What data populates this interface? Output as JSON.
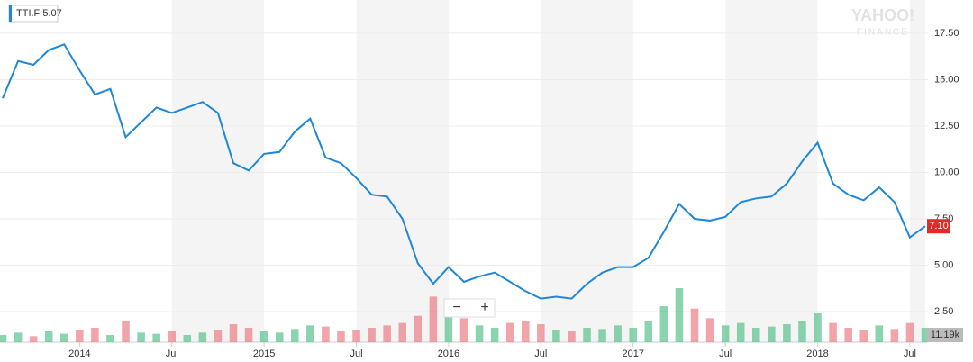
{
  "chart_data": {
    "type": "line",
    "symbol": "TTI.F",
    "legend_value": "5.07",
    "watermark": [
      "YAHOO!",
      "FINANCE"
    ],
    "zoom_controls": [
      "−",
      "+"
    ],
    "x": [
      "2013-08",
      "2013-09",
      "2013-10",
      "2013-11",
      "2013-12",
      "2014-01",
      "2014-02",
      "2014-03",
      "2014-04",
      "2014-05",
      "2014-06",
      "2014-07",
      "2014-08",
      "2014-09",
      "2014-10",
      "2014-11",
      "2014-12",
      "2015-01",
      "2015-02",
      "2015-03",
      "2015-04",
      "2015-05",
      "2015-06",
      "2015-07",
      "2015-08",
      "2015-09",
      "2015-10",
      "2015-11",
      "2015-12",
      "2016-01",
      "2016-02",
      "2016-03",
      "2016-04",
      "2016-05",
      "2016-06",
      "2016-07",
      "2016-08",
      "2016-09",
      "2016-10",
      "2016-11",
      "2016-12",
      "2017-01",
      "2017-02",
      "2017-03",
      "2017-04",
      "2017-05",
      "2017-06",
      "2017-07",
      "2017-08",
      "2017-09",
      "2017-10",
      "2017-11",
      "2017-12",
      "2018-01",
      "2018-02",
      "2018-03",
      "2018-04",
      "2018-05",
      "2018-06",
      "2018-07",
      "2018-08"
    ],
    "series": [
      {
        "name": "TTI.F",
        "color": "#1f87d6",
        "values": [
          14.0,
          16.0,
          15.8,
          16.6,
          16.9,
          15.5,
          14.2,
          14.5,
          11.9,
          12.7,
          13.5,
          13.2,
          13.5,
          13.8,
          13.2,
          10.5,
          10.1,
          11.0,
          11.1,
          12.2,
          12.9,
          10.8,
          10.5,
          9.7,
          8.8,
          8.7,
          7.5,
          5.1,
          4.0,
          4.9,
          4.1,
          4.4,
          4.6,
          4.1,
          3.6,
          3.2,
          3.3,
          3.2,
          4.0,
          4.6,
          4.9,
          4.9,
          5.4,
          6.8,
          8.3,
          7.5,
          7.4,
          7.6,
          8.4,
          8.6,
          8.7,
          9.4,
          10.6,
          11.6,
          9.4,
          8.8,
          8.5,
          9.2,
          8.4,
          6.5,
          7.1
        ]
      },
      {
        "name": "Volume",
        "axis": "y2",
        "up_color": "#3cb878",
        "down_color": "#e8686f",
        "values": [
          6,
          8,
          5,
          9,
          7,
          10,
          12,
          6,
          18,
          8,
          7,
          9,
          6,
          8,
          10,
          15,
          12,
          9,
          8,
          11,
          14,
          13,
          9,
          10,
          12,
          14,
          16,
          22,
          38,
          30,
          20,
          14,
          12,
          16,
          18,
          15,
          10,
          9,
          12,
          11,
          14,
          12,
          18,
          30,
          45,
          28,
          20,
          14,
          16,
          12,
          13,
          15,
          18,
          24,
          16,
          12,
          10,
          14,
          11,
          16,
          12
        ]
      }
    ],
    "xlim": [
      "2013-08",
      "2018-08"
    ],
    "xticks": [
      {
        "value": "2014-01",
        "label": "2014"
      },
      {
        "value": "2014-07",
        "label": "Jul"
      },
      {
        "value": "2015-01",
        "label": "2015"
      },
      {
        "value": "2015-07",
        "label": "Jul"
      },
      {
        "value": "2016-01",
        "label": "2016"
      },
      {
        "value": "2016-07",
        "label": "Jul"
      },
      {
        "value": "2017-01",
        "label": "2017"
      },
      {
        "value": "2017-07",
        "label": "Jul"
      },
      {
        "value": "2018-01",
        "label": "2018"
      },
      {
        "value": "2018-07",
        "label": "Jul"
      }
    ],
    "ylim": [
      0.85,
      19.05
    ],
    "yticks": [
      {
        "value": 2.5,
        "label": "2.50"
      },
      {
        "value": 5,
        "label": "5.00"
      },
      {
        "value": 7.5,
        "label": "7.50"
      },
      {
        "value": 10,
        "label": "10.00"
      },
      {
        "value": 12.5,
        "label": "12.50"
      },
      {
        "value": 15,
        "label": "15.00"
      },
      {
        "value": 17.5,
        "label": "17.50"
      }
    ],
    "y2lim": [
      0,
      60
    ],
    "last_label": {
      "value": 7.1,
      "label": "7.10"
    },
    "volume_label": "11.19k",
    "grid": true
  }
}
